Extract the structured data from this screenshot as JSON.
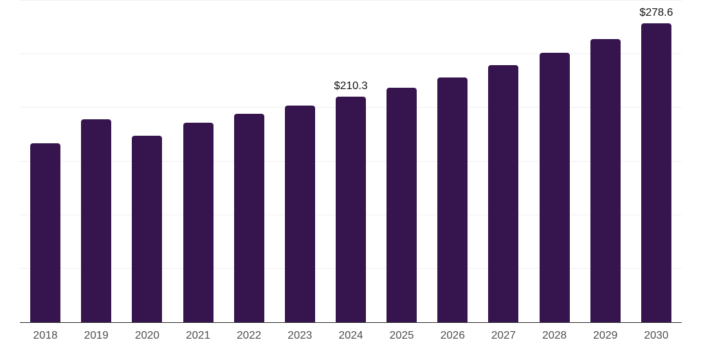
{
  "chart_data": {
    "type": "bar",
    "title": "",
    "xlabel": "",
    "ylabel": "",
    "categories": [
      "2018",
      "2019",
      "2020",
      "2021",
      "2022",
      "2023",
      "2024",
      "2025",
      "2026",
      "2027",
      "2028",
      "2029",
      "2030"
    ],
    "values": [
      167.0,
      189.3,
      174.2,
      186.2,
      194.3,
      202.2,
      210.3,
      218.6,
      228.2,
      239.9,
      251.6,
      264.5,
      278.6
    ],
    "data_labels": [
      "",
      "",
      "",
      "",
      "",
      "",
      "$210.3",
      "",
      "",
      "",
      "",
      "",
      "$278.6"
    ],
    "ylim": [
      0,
      300
    ],
    "gridline_values": [
      50,
      100,
      150,
      200,
      250,
      300
    ],
    "grid": true,
    "legend_position": "none",
    "colors": {
      "bar": "#36154e",
      "axis_line": "#2d2d2d",
      "gridline": "#f0f0f0",
      "tick_label": "#4f4f4f",
      "data_label": "#141414",
      "background": "#ffffff"
    }
  }
}
